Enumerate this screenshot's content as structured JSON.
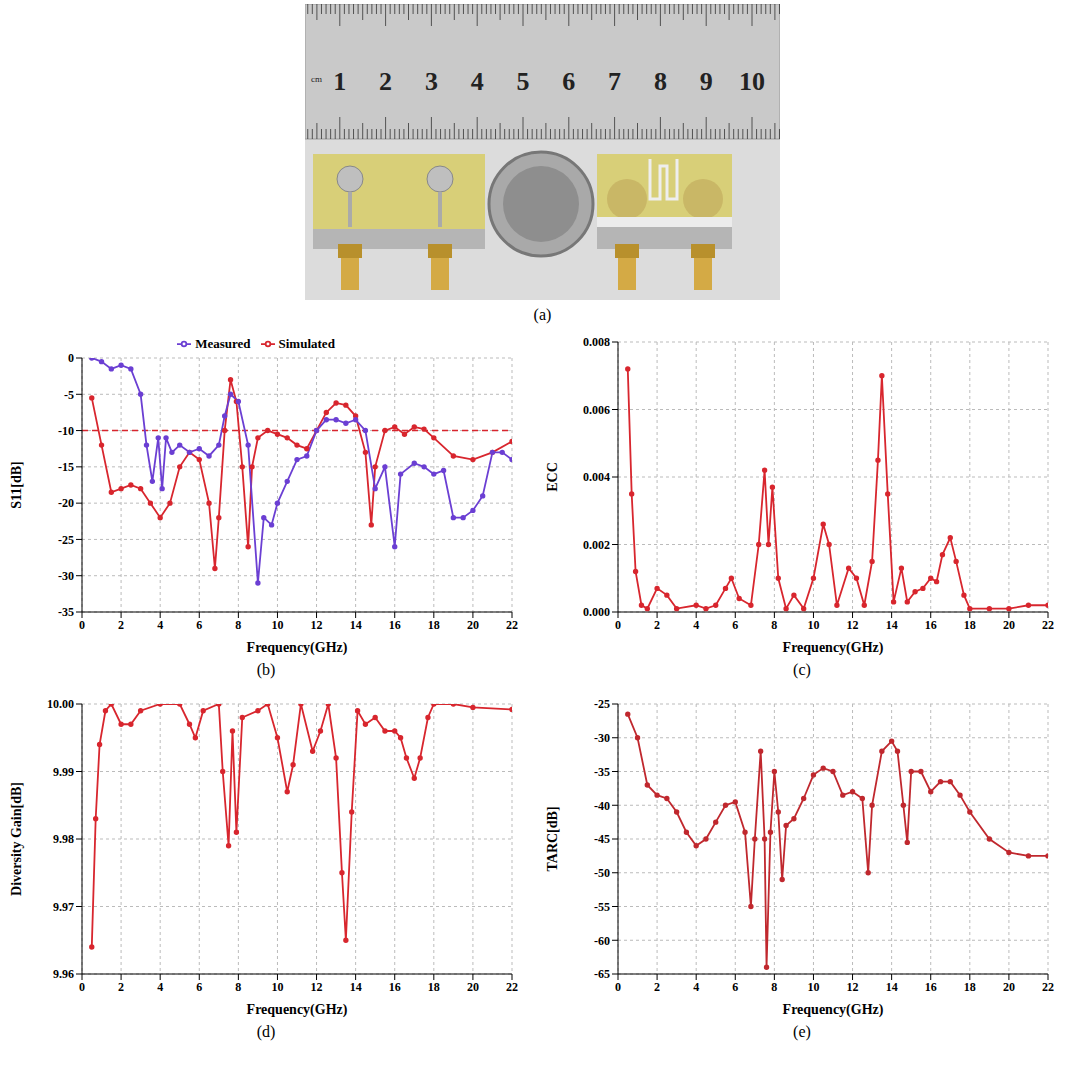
{
  "panel_a": {
    "label": "(a)",
    "ruler_unit": "cm",
    "ruler_numbers": [
      1,
      2,
      3,
      4,
      5,
      6,
      7,
      8,
      9,
      10
    ]
  },
  "chart_data": [
    {
      "type": "line",
      "label": "(b)",
      "x_label": "Frequency(GHz)",
      "y_label": "S11[dB]",
      "xlim": [
        0,
        22
      ],
      "xticks": [
        0,
        2,
        4,
        6,
        8,
        10,
        12,
        14,
        16,
        18,
        20,
        22
      ],
      "ylim": [
        -35,
        0
      ],
      "yticks": [
        -35,
        -30,
        -25,
        -20,
        -15,
        -10,
        -5,
        0
      ],
      "grid": true,
      "legend": "top",
      "hlines": [
        {
          "value": -10,
          "color": "#d8262e",
          "line_style": "dashed"
        }
      ],
      "series": [
        {
          "name": "Simulated",
          "color": "#d8262e",
          "marker": "circle",
          "x": [
            0.5,
            1,
            1.5,
            2,
            2.5,
            3,
            3.5,
            4,
            4.5,
            5,
            5.5,
            6,
            6.5,
            6.8,
            7,
            7.3,
            7.6,
            7.9,
            8.2,
            8.5,
            8.7,
            9,
            9.5,
            10,
            10.5,
            11,
            11.5,
            12,
            12.5,
            13,
            13.5,
            14,
            14.5,
            14.8,
            15,
            15.5,
            16,
            16.5,
            17,
            17.5,
            18,
            19,
            20,
            21,
            22
          ],
          "values": [
            -5.5,
            -12,
            -18.5,
            -18,
            -17.5,
            -18,
            -20,
            -22,
            -20,
            -15,
            -13,
            -14,
            -20,
            -29,
            -22,
            -10,
            -3,
            -6,
            -15,
            -26,
            -15,
            -11,
            -10,
            -10.5,
            -11,
            -12,
            -12.5,
            -10,
            -7.5,
            -6.2,
            -6.5,
            -8,
            -13,
            -23,
            -15,
            -10,
            -9.5,
            -10.5,
            -9.5,
            -9.8,
            -11,
            -13.5,
            -14,
            -13,
            -11.5
          ]
        },
        {
          "name": "Measured",
          "color": "#6b3fd3",
          "marker": "circle",
          "x": [
            0.5,
            1,
            1.5,
            2,
            2.5,
            3,
            3.3,
            3.6,
            3.9,
            4.1,
            4.3,
            4.6,
            5,
            5.5,
            6,
            6.5,
            7,
            7.3,
            7.6,
            8,
            8.5,
            9,
            9.3,
            9.7,
            10,
            10.5,
            11,
            11.5,
            12,
            12.5,
            13,
            13.5,
            14,
            14.5,
            15,
            15.5,
            16,
            16.3,
            17,
            17.5,
            18,
            18.5,
            19,
            19.5,
            20,
            20.5,
            21,
            21.5,
            22
          ],
          "values": [
            0,
            -0.5,
            -1.5,
            -1,
            -1.5,
            -5,
            -12,
            -17,
            -11,
            -18,
            -11,
            -13,
            -12,
            -13,
            -12.5,
            -13.5,
            -12,
            -8,
            -5,
            -6,
            -12,
            -31,
            -22,
            -23,
            -20,
            -17,
            -14,
            -13.5,
            -10,
            -8.5,
            -8.5,
            -9,
            -8.5,
            -10,
            -18,
            -15,
            -26,
            -16,
            -14.5,
            -15,
            -16,
            -15.5,
            -22,
            -22,
            -21,
            -19,
            -13,
            -13,
            -14
          ]
        }
      ]
    },
    {
      "type": "line",
      "label": "(c)",
      "x_label": "Frequency(GHz)",
      "y_label": "ECC",
      "xlim": [
        0,
        22
      ],
      "xticks": [
        0,
        2,
        4,
        6,
        8,
        10,
        12,
        14,
        16,
        18,
        20,
        22
      ],
      "ylim": [
        0,
        0.008
      ],
      "yticks": [
        {
          "value": 0,
          "label": "0.000"
        },
        {
          "value": 0.002,
          "label": "0.002"
        },
        {
          "value": 0.004,
          "label": "0.004"
        },
        {
          "value": 0.006,
          "label": "0.006"
        },
        {
          "value": 0.008,
          "label": "0.008"
        }
      ],
      "grid": true,
      "series": [
        {
          "color": "#d8262e",
          "marker": "circle",
          "x": [
            0.5,
            0.7,
            0.9,
            1.2,
            1.5,
            2,
            2.5,
            3,
            4,
            4.5,
            5,
            5.5,
            5.8,
            6.2,
            6.8,
            7.2,
            7.5,
            7.7,
            7.9,
            8.2,
            8.6,
            9,
            9.5,
            10,
            10.5,
            10.8,
            11.2,
            11.8,
            12.2,
            12.6,
            13,
            13.3,
            13.5,
            13.8,
            14.1,
            14.5,
            14.8,
            15.2,
            15.6,
            16,
            16.3,
            16.6,
            17,
            17.3,
            17.7,
            18,
            19,
            20,
            21,
            22
          ],
          "values": [
            0.0072,
            0.0035,
            0.0012,
            0.0002,
            0.0001,
            0.0007,
            0.0005,
            0.0001,
            0.0002,
            0.0001,
            0.0002,
            0.0007,
            0.001,
            0.0004,
            0.0002,
            0.002,
            0.0042,
            0.002,
            0.0037,
            0.001,
            0.0001,
            0.0005,
            0.0001,
            0.001,
            0.0026,
            0.002,
            0.0002,
            0.0013,
            0.001,
            0.0002,
            0.0015,
            0.0045,
            0.007,
            0.0035,
            0.0003,
            0.0013,
            0.0003,
            0.0006,
            0.0007,
            0.001,
            0.0009,
            0.0017,
            0.0022,
            0.0015,
            0.0005,
            0.0001,
            0.0001,
            0.0001,
            0.0002,
            0.0002
          ]
        }
      ]
    },
    {
      "type": "line",
      "label": "(d)",
      "x_label": "Frequency(GHz)",
      "y_label": "Diversity Gain[dB]",
      "xlim": [
        0,
        22
      ],
      "xticks": [
        0,
        2,
        4,
        6,
        8,
        10,
        12,
        14,
        16,
        18,
        20,
        22
      ],
      "ylim": [
        9.96,
        10
      ],
      "yticks": [
        9.96,
        9.97,
        9.98,
        9.99,
        {
          "value": 10,
          "label": "10.00"
        }
      ],
      "grid": true,
      "series": [
        {
          "color": "#d8262e",
          "marker": "circle",
          "x": [
            0.5,
            0.7,
            0.9,
            1.2,
            1.5,
            2,
            2.5,
            3,
            4,
            5,
            5.5,
            5.8,
            6.2,
            7,
            7.2,
            7.5,
            7.7,
            7.9,
            8.2,
            9,
            9.5,
            10,
            10.5,
            10.8,
            11.2,
            11.8,
            12.2,
            12.6,
            13,
            13.3,
            13.5,
            13.8,
            14.1,
            14.5,
            15,
            15.5,
            16,
            16.3,
            16.6,
            17,
            17.3,
            17.7,
            18,
            19,
            20,
            22
          ],
          "values": [
            9.964,
            9.983,
            9.994,
            9.999,
            10,
            9.997,
            9.997,
            9.999,
            10,
            10,
            9.997,
            9.995,
            9.999,
            10,
            9.99,
            9.979,
            9.996,
            9.981,
            9.998,
            9.999,
            10,
            9.995,
            9.987,
            9.991,
            10,
            9.993,
            9.996,
            10,
            9.992,
            9.975,
            9.965,
            9.984,
            9.999,
            9.997,
            9.998,
            9.996,
            9.996,
            9.995,
            9.992,
            9.989,
            9.992,
            9.998,
            10,
            10,
            9.9995,
            9.9992
          ]
        }
      ]
    },
    {
      "type": "line",
      "label": "(e)",
      "x_label": "Frequency(GHz)",
      "y_label": "TARC[dB]",
      "xlim": [
        0,
        22
      ],
      "xticks": [
        0,
        2,
        4,
        6,
        8,
        10,
        12,
        14,
        16,
        18,
        20,
        22
      ],
      "ylim": [
        -65,
        -25
      ],
      "yticks": [
        -65,
        -60,
        -55,
        -50,
        -45,
        -40,
        -35,
        -30,
        -25
      ],
      "grid": true,
      "series": [
        {
          "color": "#c0282e",
          "marker": "circle",
          "x": [
            0.5,
            1,
            1.5,
            2,
            2.5,
            3,
            3.5,
            4,
            4.5,
            5,
            5.5,
            6,
            6.5,
            6.8,
            7,
            7.3,
            7.5,
            7.6,
            7.8,
            8,
            8.2,
            8.4,
            8.6,
            9,
            9.5,
            10,
            10.5,
            11,
            11.5,
            12,
            12.5,
            12.8,
            13,
            13.5,
            14,
            14.3,
            14.6,
            14.8,
            15,
            15.5,
            16,
            16.5,
            17,
            17.5,
            18,
            19,
            20,
            21,
            22
          ],
          "values": [
            -26.5,
            -30,
            -37,
            -38.5,
            -39,
            -41,
            -44,
            -46,
            -45,
            -42.5,
            -40,
            -39.5,
            -44,
            -55,
            -45,
            -32,
            -45,
            -64,
            -44,
            -35,
            -41,
            -51,
            -43,
            -42,
            -39,
            -35.5,
            -34.5,
            -35,
            -38.5,
            -38,
            -39,
            -50,
            -40,
            -32,
            -30.5,
            -32,
            -40,
            -45.5,
            -35,
            -35,
            -38,
            -36.5,
            -36.5,
            -38.5,
            -41,
            -45,
            -47,
            -47.5,
            -47.5
          ]
        }
      ]
    }
  ]
}
